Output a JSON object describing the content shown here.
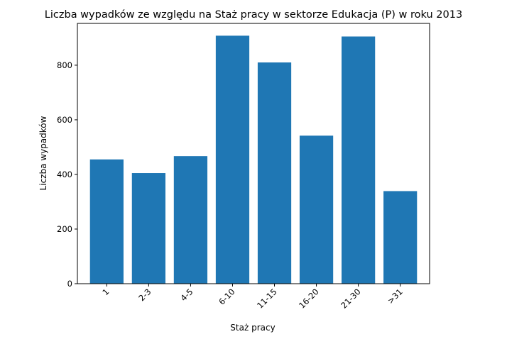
{
  "chart_data": {
    "type": "bar",
    "title": "Liczba wypadków ze względu na Staż pracy w sektorze Edukacja  (P)   w roku 2013",
    "xlabel": "Staż pracy",
    "ylabel": "Liczba wypadków",
    "categories": [
      "1",
      "2-3",
      "4-5",
      "6-10",
      "11-15",
      "16-20",
      "21-30",
      ">31"
    ],
    "values": [
      455,
      405,
      467,
      908,
      810,
      542,
      905,
      339
    ],
    "ylim": [
      0,
      953
    ],
    "yticks": [
      0,
      200,
      400,
      600,
      800
    ],
    "bar_color": "#1f77b4",
    "grid": false
  }
}
